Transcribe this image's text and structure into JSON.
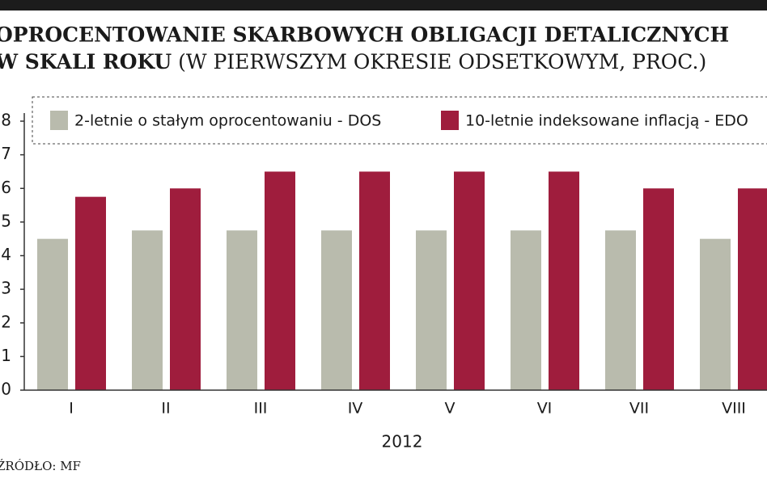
{
  "chart_data": {
    "type": "bar",
    "title": "OPROCENTOWANIE SKARBOWYCH OBLIGACJI DETALICZNYCH",
    "subtitle_bold": "W SKALI ROKU",
    "subtitle": "(W PIERWSZYM OKRESIE ODSETKOWYM, PROC.)",
    "categories": [
      "I",
      "II",
      "III",
      "IV",
      "V",
      "VI",
      "VII",
      "VIII"
    ],
    "x_label": "2012",
    "series": [
      {
        "name": "2-letnie o stałym oprocentowaniu - DOS",
        "color": "#b9bbad",
        "values": [
          4.5,
          4.75,
          4.75,
          4.75,
          4.75,
          4.75,
          4.75,
          4.5
        ]
      },
      {
        "name": "10-letnie indeksowane inflacją - EDO",
        "color": "#9f1d3d",
        "values": [
          5.75,
          6,
          6.5,
          6.5,
          6.5,
          6.5,
          6,
          6
        ]
      }
    ],
    "ylim": [
      0,
      8
    ],
    "yticks": [
      0,
      1,
      2,
      3,
      4,
      5,
      6,
      7,
      8
    ],
    "grid": false,
    "legend": "top",
    "source": "ŹRÓDŁO: MF"
  }
}
